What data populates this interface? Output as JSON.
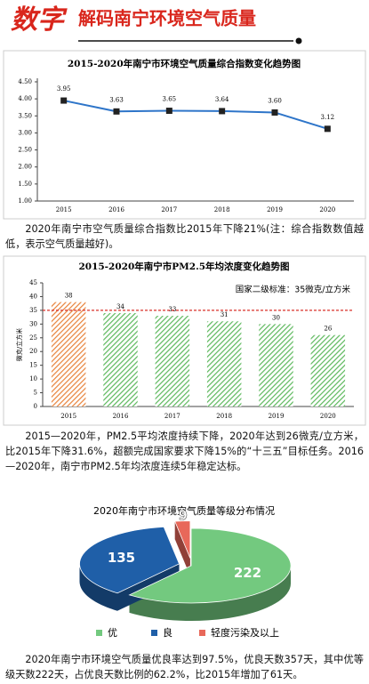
{
  "header": {
    "badge": "数字",
    "title": "解码南宁环境空气质量"
  },
  "chart_data": [
    {
      "type": "line",
      "title": "2015-2020年南宁市环境空气质量综合指数变化趋势图",
      "categories": [
        "2015",
        "2016",
        "2017",
        "2018",
        "2019",
        "2020"
      ],
      "series": [
        {
          "color": "#2e75c9",
          "values": [
            3.95,
            3.63,
            3.65,
            3.64,
            3.6,
            3.12
          ],
          "value_labels": [
            "3.95",
            "3.63",
            "3.65",
            "3.64",
            "3.60",
            "3.12"
          ]
        }
      ],
      "ylim": [
        1,
        4.5
      ],
      "yticks": [
        {
          "value": 1,
          "label": "1.00"
        },
        {
          "value": 1.5,
          "label": "1.50"
        },
        {
          "value": 2,
          "label": "2.00"
        },
        {
          "value": 2.5,
          "label": "2.50"
        },
        {
          "value": 3,
          "label": "3.00"
        },
        {
          "value": 3.5,
          "label": "3.50"
        },
        {
          "value": 4,
          "label": "4.00"
        },
        {
          "value": 4.5,
          "label": "4.50"
        }
      ]
    },
    {
      "type": "bar",
      "title": "2015-2020年南宁市PM2.5年均浓度变化趋势图",
      "categories": [
        "2015",
        "2016",
        "2017",
        "2018",
        "2019",
        "2020"
      ],
      "values": [
        38,
        34,
        33,
        31,
        30,
        26
      ],
      "colors": [
        "#e8823a",
        "#5cb85c",
        "#5cb85c",
        "#5cb85c",
        "#5cb85c",
        "#5cb85c"
      ],
      "ylabel": "微克/立方米",
      "ylim": [
        0,
        45
      ],
      "yticks": [
        0,
        5,
        10,
        15,
        20,
        25,
        30,
        35,
        40,
        45
      ],
      "reference": {
        "value": 35,
        "label": "国家二级标准：35微克/立方米",
        "color": "#d9302a"
      }
    },
    {
      "type": "pie",
      "title": "2020年南宁市环境空气质量等级分布情况",
      "categories": [
        "优",
        "良",
        "轻度污染及以上"
      ],
      "values": [
        222,
        135,
        9
      ],
      "colors": [
        "#73c97f",
        "#1f5fa8",
        "#e8685a"
      ]
    }
  ],
  "paragraphs": [
    "2020年南宁市空气质量综合指数比2015年下降21%(注：综合指数数值越低，表示空气质量越好)。",
    "2015—2020年，PM2.5平均浓度持续下降，2020年达到26微克/立方米，比2015年下降31.6%，超额完成国家要求下降15%的“十三五”目标任务。2016—2020年，南宁市PM2.5年均浓度连续5年稳定达标。",
    "2020年南宁市环境空气质量优良率达到97.5%，优良天数357天，其中优等级天数222天，占优良天数比例的62.2%，比2015年增加了61天。"
  ]
}
